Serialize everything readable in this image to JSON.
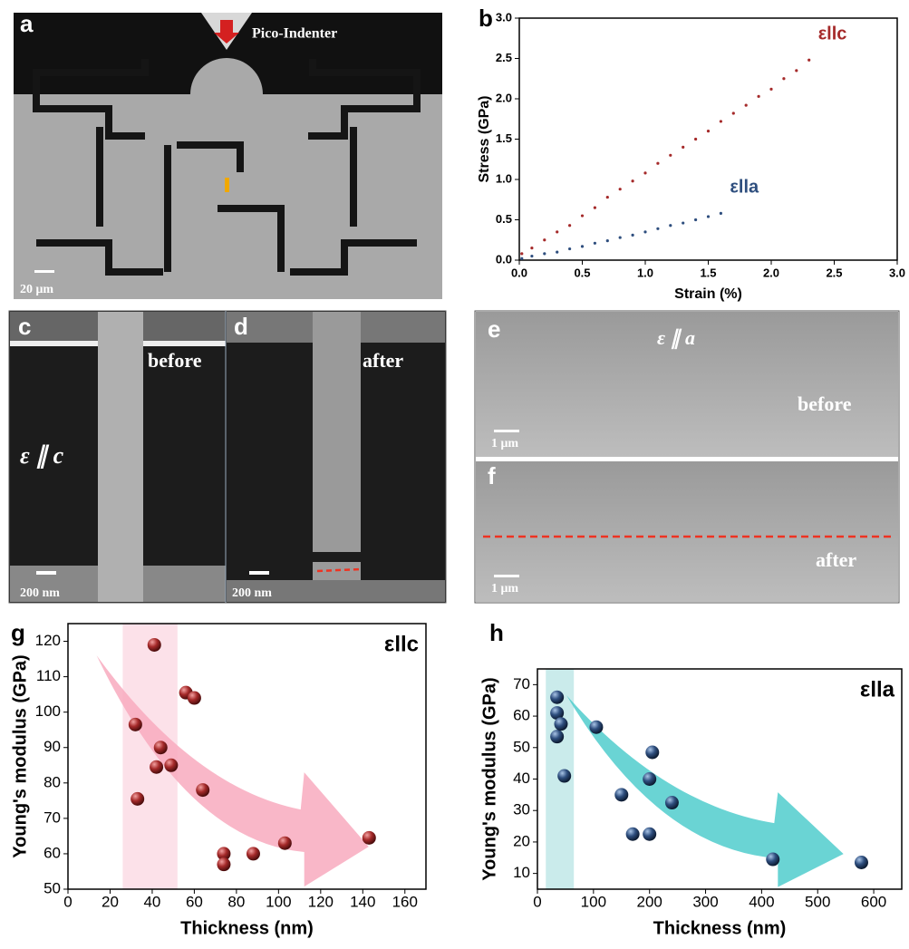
{
  "panels": {
    "a": {
      "label": "a",
      "indenter": "Pico-Indenter",
      "scale": "20 μm"
    },
    "c": {
      "label": "c",
      "state": "before",
      "strain": "ε ∥ c",
      "scale": "200 nm"
    },
    "d": {
      "label": "d",
      "state": "after",
      "scale": "200 nm"
    },
    "e": {
      "label": "e",
      "strain": "ε ∥ a",
      "state": "before",
      "scale": "1 μm"
    },
    "f": {
      "label": "f",
      "state": "after",
      "scale": "1 μm"
    }
  },
  "chart_data": [
    {
      "type": "scatter",
      "label": "b",
      "xlabel": "Strain (%)",
      "ylabel": "Stress (GPa)",
      "xlim": [
        0,
        3
      ],
      "ylim": [
        0,
        3
      ],
      "xticks": [
        {
          "value": 0,
          "label": "0.0"
        },
        {
          "value": 0.5,
          "label": "0.5"
        },
        {
          "value": 1,
          "label": "1.0"
        },
        {
          "value": 1.5,
          "label": "1.5"
        },
        {
          "value": 2,
          "label": "2.0"
        },
        {
          "value": 2.5,
          "label": "2.5"
        },
        {
          "value": 3,
          "label": "3.0"
        }
      ],
      "yticks": [
        {
          "value": 0,
          "label": "0.0"
        },
        {
          "value": 0.5,
          "label": "0.5"
        },
        {
          "value": 1,
          "label": "1.0"
        },
        {
          "value": 1.5,
          "label": "1.5"
        },
        {
          "value": 2,
          "label": "2.0"
        },
        {
          "value": 2.5,
          "label": "2.5"
        },
        {
          "value": 3,
          "label": "3.0"
        }
      ],
      "series": [
        {
          "name": "εllc",
          "color": "#a52a2a",
          "x": [
            0.02,
            0.1,
            0.2,
            0.3,
            0.4,
            0.5,
            0.6,
            0.7,
            0.8,
            0.9,
            1.0,
            1.1,
            1.2,
            1.3,
            1.4,
            1.5,
            1.6,
            1.7,
            1.8,
            1.9,
            2.0,
            2.1,
            2.2,
            2.3
          ],
          "values": [
            0.08,
            0.15,
            0.25,
            0.35,
            0.43,
            0.55,
            0.65,
            0.78,
            0.88,
            0.98,
            1.08,
            1.2,
            1.3,
            1.4,
            1.5,
            1.6,
            1.72,
            1.82,
            1.92,
            2.03,
            2.12,
            2.25,
            2.35,
            2.48
          ]
        },
        {
          "name": "εlla",
          "color": "#2e4e7e",
          "x": [
            0.02,
            0.1,
            0.2,
            0.3,
            0.4,
            0.5,
            0.6,
            0.7,
            0.8,
            0.9,
            1.0,
            1.1,
            1.2,
            1.3,
            1.4,
            1.5,
            1.6
          ],
          "values": [
            0.02,
            0.05,
            0.08,
            0.1,
            0.14,
            0.17,
            0.21,
            0.24,
            0.28,
            0.31,
            0.35,
            0.39,
            0.43,
            0.46,
            0.5,
            0.54,
            0.58
          ]
        }
      ]
    },
    {
      "type": "scatter",
      "label": "g",
      "xlabel": "Thickness (nm)",
      "ylabel": "Young's modulus (GPa)",
      "xlim": [
        0,
        170
      ],
      "ylim": [
        50,
        125
      ],
      "xticks": [
        0,
        20,
        40,
        60,
        80,
        100,
        120,
        140,
        160
      ],
      "yticks": [
        50,
        60,
        70,
        80,
        90,
        100,
        110,
        120
      ],
      "band": [
        26,
        52
      ],
      "series": [
        {
          "name": "εllc",
          "color": "#8b1a1a",
          "x": [
            41,
            32,
            33,
            42,
            44,
            49,
            56,
            60,
            64,
            74,
            74,
            88,
            103,
            143
          ],
          "values": [
            119,
            96.5,
            75.5,
            84.5,
            90,
            85,
            105.5,
            104,
            78,
            60,
            57,
            60,
            63,
            64.5
          ]
        }
      ]
    },
    {
      "type": "scatter",
      "label": "h",
      "xlabel": "Thickness (nm)",
      "ylabel": "Young's modulus (GPa)",
      "xlim": [
        0,
        650
      ],
      "ylim": [
        5,
        75
      ],
      "xticks": [
        0,
        100,
        200,
        300,
        400,
        500,
        600
      ],
      "yticks": [
        10,
        20,
        30,
        40,
        50,
        60,
        70
      ],
      "band": [
        15,
        65
      ],
      "series": [
        {
          "name": "εlla",
          "color": "#1f3a5f",
          "x": [
            35,
            35,
            35,
            42,
            48,
            105,
            150,
            170,
            200,
            200,
            205,
            240,
            420,
            578
          ],
          "values": [
            66,
            61,
            53.5,
            57.5,
            41,
            56.5,
            35,
            22.5,
            22.5,
            40,
            48.5,
            32.5,
            14.5,
            13.5
          ]
        }
      ]
    }
  ]
}
